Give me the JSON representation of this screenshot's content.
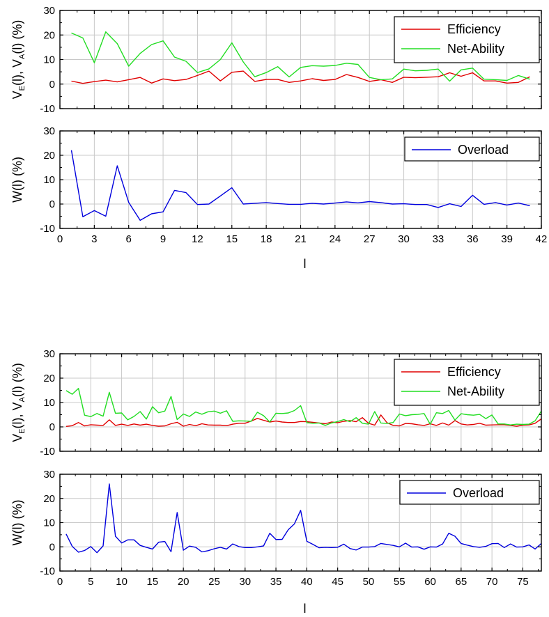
{
  "chart_data": [
    {
      "type": "line",
      "ylabel_main": "V",
      "ylabel_sub1": "E",
      "ylabel_mid": "(l), V",
      "ylabel_sub2": "A",
      "ylabel_end": "(l) (%)",
      "xlim": [
        0,
        42
      ],
      "ylim": [
        -10,
        30
      ],
      "xticks": [
        "0",
        "3",
        "6",
        "9",
        "12",
        "15",
        "18",
        "21",
        "24",
        "27",
        "30",
        "33",
        "36",
        "39",
        "42"
      ],
      "yticks": [
        "-10",
        "0",
        "10",
        "20",
        "30"
      ],
      "grid": true,
      "legend": "top-right",
      "colors": {
        "Efficiency": "#e00000",
        "Net-Ability": "#22dd22"
      },
      "x": [
        1,
        2,
        3,
        4,
        5,
        6,
        7,
        8,
        9,
        10,
        11,
        12,
        13,
        14,
        15,
        16,
        17,
        18,
        19,
        20,
        21,
        22,
        23,
        24,
        25,
        26,
        27,
        28,
        29,
        30,
        31,
        32,
        33,
        34,
        35,
        36,
        37,
        38,
        39,
        40,
        41
      ],
      "series": [
        {
          "name": "Efficiency",
          "values": [
            1.2,
            0.3,
            1.0,
            1.6,
            0.9,
            1.8,
            2.7,
            0.4,
            2.1,
            1.4,
            1.9,
            3.5,
            5.3,
            1.3,
            4.8,
            5.3,
            1.1,
            1.9,
            1.9,
            0.7,
            1.3,
            2.2,
            1.5,
            1.9,
            3.9,
            2.7,
            1.1,
            1.8,
            0.7,
            2.8,
            2.6,
            2.8,
            3.0,
            4.6,
            3.2,
            4.6,
            1.3,
            1.3,
            0.4,
            0.7,
            3.0
          ]
        },
        {
          "name": "Net-Ability",
          "values": [
            20.8,
            18.8,
            8.7,
            21.3,
            16.5,
            7.3,
            12.5,
            16.1,
            17.6,
            11.0,
            9.3,
            4.7,
            6.2,
            10.0,
            16.8,
            9.0,
            3.0,
            4.7,
            7.1,
            2.9,
            6.8,
            7.5,
            7.3,
            7.6,
            8.5,
            8.0,
            2.7,
            1.8,
            2.1,
            6.1,
            5.4,
            5.6,
            6.1,
            1.2,
            5.8,
            6.5,
            2.0,
            1.8,
            1.5,
            3.5,
            2.0
          ]
        }
      ]
    },
    {
      "type": "line",
      "ylabel": "W(l) (%)",
      "xlabel": "l",
      "xlim": [
        0,
        42
      ],
      "ylim": [
        -10,
        30
      ],
      "xticks": [
        "0",
        "3",
        "6",
        "9",
        "12",
        "15",
        "18",
        "21",
        "24",
        "27",
        "30",
        "33",
        "36",
        "39",
        "42"
      ],
      "yticks": [
        "-10",
        "0",
        "10",
        "20",
        "30"
      ],
      "grid": true,
      "legend": "top-right",
      "colors": {
        "Overload": "#0000dd"
      },
      "x": [
        1,
        2,
        3,
        4,
        5,
        6,
        7,
        8,
        9,
        10,
        11,
        12,
        13,
        14,
        15,
        16,
        17,
        18,
        19,
        20,
        21,
        22,
        23,
        24,
        25,
        26,
        27,
        28,
        29,
        30,
        31,
        32,
        33,
        34,
        35,
        36,
        37,
        38,
        39,
        40,
        41
      ],
      "series": [
        {
          "name": "Overload",
          "values": [
            22.1,
            -5.2,
            -2.7,
            -5.0,
            15.7,
            0.7,
            -6.7,
            -4.0,
            -3.2,
            5.6,
            4.7,
            -0.2,
            0.0,
            3.3,
            6.7,
            0.0,
            0.3,
            0.6,
            0.2,
            -0.1,
            -0.1,
            0.3,
            0.0,
            0.4,
            0.9,
            0.5,
            1.0,
            0.6,
            0.0,
            0.1,
            -0.2,
            -0.2,
            -1.4,
            0.1,
            -1.0,
            3.6,
            -0.1,
            0.6,
            -0.4,
            0.4,
            -0.7
          ]
        }
      ]
    },
    {
      "type": "line",
      "ylabel_main": "V",
      "ylabel_sub1": "E",
      "ylabel_mid": "(l), V",
      "ylabel_sub2": "A",
      "ylabel_end": "(l) (%)",
      "xlim": [
        0,
        78
      ],
      "ylim": [
        -10,
        30
      ],
      "xticks": [
        "0",
        "5",
        "10",
        "15",
        "20",
        "25",
        "30",
        "35",
        "40",
        "45",
        "50",
        "55",
        "60",
        "65",
        "70",
        "75"
      ],
      "yticks": [
        "-10",
        "0",
        "10",
        "20",
        "30"
      ],
      "grid": true,
      "legend": "top-right",
      "colors": {
        "Efficiency": "#e00000",
        "Net-Ability": "#22dd22"
      },
      "series": [
        {
          "name": "Efficiency",
          "x": [
            1,
            2,
            3,
            4,
            5,
            6,
            7,
            8,
            9,
            10,
            11,
            12,
            13,
            14,
            15,
            16,
            17,
            18,
            19,
            20,
            21,
            22,
            23,
            24,
            25,
            26,
            27,
            28,
            29,
            30,
            31,
            32,
            33,
            34,
            35,
            36,
            37,
            38,
            39,
            40,
            41,
            42,
            43,
            44,
            45,
            46,
            47,
            48,
            49,
            50,
            51,
            52,
            53,
            54,
            55,
            56,
            57,
            58,
            59,
            60,
            61,
            62,
            63,
            64,
            65,
            66,
            67,
            68,
            69,
            70,
            71,
            72,
            73,
            74,
            75,
            76,
            77,
            78
          ],
          "values": [
            0.2,
            0.5,
            1.8,
            0.4,
            0.9,
            0.7,
            0.6,
            2.9,
            0.6,
            1.1,
            0.6,
            1.2,
            0.7,
            1.1,
            0.6,
            0.3,
            0.4,
            1.3,
            1.9,
            0.3,
            1.0,
            0.5,
            1.3,
            0.8,
            0.7,
            0.7,
            0.5,
            1.1,
            1.5,
            1.5,
            2.4,
            3.5,
            2.7,
            2.0,
            2.4,
            2.0,
            1.8,
            1.8,
            2.2,
            2.1,
            1.9,
            1.6,
            1.3,
            2.0,
            1.7,
            2.3,
            2.6,
            2.1,
            3.8,
            1.5,
            0.7,
            4.9,
            1.7,
            0.6,
            0.4,
            1.4,
            1.3,
            0.9,
            0.6,
            1.3,
            0.6,
            1.6,
            0.7,
            2.6,
            1.2,
            0.8,
            1.0,
            1.5,
            0.7,
            0.8,
            0.9,
            0.9,
            0.6,
            0.3,
            0.7,
            0.8,
            1.5,
            3.3
          ]
        },
        {
          "name": "Net-Ability",
          "x": [
            1,
            2,
            3,
            4,
            5,
            6,
            7,
            8,
            9,
            10,
            11,
            12,
            13,
            14,
            15,
            16,
            17,
            18,
            19,
            20,
            21,
            22,
            23,
            24,
            25,
            26,
            27,
            28,
            29,
            30,
            31,
            32,
            33,
            34,
            35,
            36,
            37,
            38,
            39,
            40,
            41,
            42,
            43,
            44,
            45,
            46,
            47,
            48,
            49,
            50,
            51,
            52,
            53,
            54,
            55,
            56,
            57,
            58,
            59,
            60,
            61,
            62,
            63,
            64,
            65,
            66,
            67,
            68,
            69,
            70,
            71,
            72,
            73,
            74,
            75,
            76,
            77,
            78
          ],
          "values": [
            14.9,
            13.4,
            15.8,
            4.8,
            4.2,
            5.5,
            4.4,
            14.2,
            5.6,
            5.7,
            2.9,
            4.3,
            6.3,
            3.2,
            8.3,
            5.8,
            6.5,
            12.5,
            3.0,
            5.3,
            4.3,
            6.1,
            5.2,
            6.2,
            6.5,
            5.6,
            6.6,
            2.3,
            2.5,
            2.4,
            2.3,
            6.0,
            4.6,
            2.0,
            5.6,
            5.5,
            5.7,
            6.7,
            8.7,
            1.7,
            1.5,
            1.6,
            0.6,
            1.6,
            2.2,
            3.0,
            2.1,
            3.8,
            1.5,
            1.1,
            6.3,
            1.6,
            1.4,
            1.8,
            5.3,
            4.6,
            5.0,
            5.1,
            5.5,
            1.1,
            5.8,
            5.5,
            6.7,
            2.8,
            5.4,
            5.0,
            4.8,
            5.1,
            3.4,
            4.9,
            1.2,
            1.2,
            0.8,
            1.1,
            1.0,
            1.1,
            2.5,
            6.5
          ]
        }
      ]
    },
    {
      "type": "line",
      "ylabel": "W(l) (%)",
      "xlabel": "l",
      "xlim": [
        0,
        78
      ],
      "ylim": [
        -10,
        30
      ],
      "xticks": [
        "0",
        "5",
        "10",
        "15",
        "20",
        "25",
        "30",
        "35",
        "40",
        "45",
        "50",
        "55",
        "60",
        "65",
        "70",
        "75"
      ],
      "yticks": [
        "-10",
        "0",
        "10",
        "20",
        "30"
      ],
      "grid": true,
      "legend": "top-right",
      "colors": {
        "Overload": "#0000dd"
      },
      "series": [
        {
          "name": "Overload",
          "x": [
            1,
            2,
            3,
            4,
            5,
            6,
            7,
            8,
            9,
            10,
            11,
            12,
            13,
            14,
            15,
            16,
            17,
            18,
            19,
            20,
            21,
            22,
            23,
            24,
            25,
            26,
            27,
            28,
            29,
            30,
            31,
            32,
            33,
            34,
            35,
            36,
            37,
            38,
            39,
            40,
            41,
            42,
            43,
            44,
            45,
            46,
            47,
            48,
            49,
            50,
            51,
            52,
            53,
            54,
            55,
            56,
            57,
            58,
            59,
            60,
            61,
            62,
            63,
            64,
            65,
            66,
            67,
            68,
            69,
            70,
            71,
            72,
            73,
            74,
            75,
            76,
            77,
            78
          ],
          "values": [
            5.3,
            0.2,
            -2.2,
            -1.5,
            0.1,
            -2.4,
            0.4,
            26.0,
            4.4,
            1.6,
            2.9,
            2.9,
            0.6,
            -0.2,
            -0.9,
            1.9,
            2.2,
            -2.0,
            14.2,
            -1.4,
            0.3,
            -0.2,
            -2.1,
            -1.6,
            -0.8,
            -0.2,
            -0.9,
            1.2,
            0.1,
            -0.3,
            -0.3,
            0.0,
            0.4,
            5.6,
            3.0,
            3.1,
            7.1,
            9.5,
            15.1,
            2.3,
            1.0,
            -0.4,
            -0.2,
            -0.3,
            -0.2,
            1.1,
            -0.7,
            -1.3,
            -0.1,
            -0.1,
            0.1,
            1.4,
            1.0,
            0.6,
            0.0,
            1.5,
            -0.1,
            0.0,
            -1.0,
            0.0,
            -0.1,
            1.2,
            5.6,
            4.4,
            1.4,
            0.7,
            0.1,
            -0.2,
            0.2,
            1.3,
            1.4,
            -0.3,
            1.2,
            -0.1,
            0.0,
            0.8,
            -0.9,
            1.4
          ]
        }
      ]
    }
  ],
  "legend_labels": {
    "efficiency": "Efficiency",
    "net_ability": "Net-Ability",
    "overload": "Overload"
  }
}
